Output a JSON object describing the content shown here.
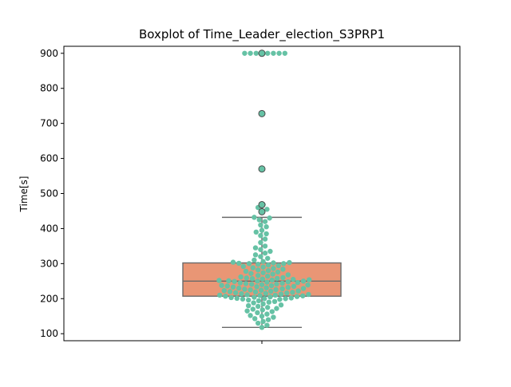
{
  "chart_data": {
    "type": "boxplot",
    "title": "Boxplot of Time_Leader_election_S3PRP1",
    "xlabel": "",
    "ylabel": "Time[s]",
    "ylim": [
      80,
      920
    ],
    "yticks": [
      100,
      200,
      300,
      400,
      500,
      600,
      700,
      800,
      900
    ],
    "grid": false,
    "box": {
      "whisker_low": 118,
      "q1": 207,
      "median": 250,
      "q3": 302,
      "whisker_high": 432
    },
    "outliers": [
      448,
      468,
      570,
      728,
      900
    ],
    "swarm": [
      118,
      124,
      130,
      135,
      140,
      143,
      147,
      150,
      152,
      156,
      160,
      163,
      165,
      168,
      170,
      172,
      175,
      178,
      180,
      182,
      185,
      188,
      190,
      192,
      194,
      196,
      198,
      199,
      200,
      200,
      201,
      202,
      203,
      204,
      205,
      206,
      207,
      208,
      209,
      210,
      210,
      211,
      212,
      213,
      214,
      215,
      216,
      217,
      218,
      219,
      220,
      221,
      222,
      223,
      224,
      225,
      226,
      227,
      228,
      229,
      230,
      231,
      232,
      233,
      234,
      235,
      236,
      237,
      238,
      239,
      240,
      241,
      242,
      243,
      244,
      245,
      246,
      247,
      248,
      249,
      250,
      250,
      251,
      252,
      253,
      254,
      255,
      256,
      257,
      258,
      259,
      260,
      262,
      264,
      266,
      268,
      270,
      272,
      274,
      276,
      278,
      280,
      282,
      284,
      286,
      288,
      290,
      292,
      294,
      296,
      298,
      300,
      300,
      301,
      302,
      303,
      304,
      306,
      310,
      315,
      320,
      325,
      330,
      335,
      340,
      345,
      350,
      360,
      370,
      380,
      385,
      390,
      395,
      405,
      410,
      420,
      425,
      430,
      432,
      448,
      455,
      460,
      468,
      900,
      900,
      900,
      900,
      900,
      900,
      900,
      900
    ],
    "colors": {
      "box": "#e99675",
      "swarm": "#66c2a5",
      "line": "#6a6a6a",
      "outlier": "#66c2a5"
    }
  }
}
